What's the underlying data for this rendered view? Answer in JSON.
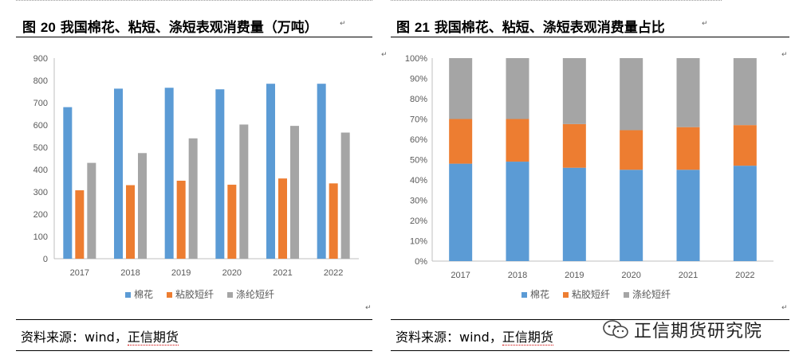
{
  "figures": [
    {
      "title_prefix": "图",
      "number": "20",
      "title_text": "我国棉花、粘短、涤短表观消费量（万吨）",
      "source": {
        "label": "资料来源：wind，",
        "org": "正信期货"
      }
    },
    {
      "title_prefix": "图",
      "number": "21",
      "title_text": "我国棉花、粘短、涤短表观消费量占比",
      "source": {
        "label": "资料来源：wind，",
        "org": "正信期货"
      }
    }
  ],
  "watermark": {
    "text": "正信期货研究院",
    "icon": "wechat-icon"
  },
  "colors": {
    "cotton": "#5B9BD5",
    "viscose": "#ED7D31",
    "polyester": "#A5A5A5"
  },
  "chart_data": [
    {
      "type": "bar",
      "categories": [
        "2017",
        "2018",
        "2019",
        "2020",
        "2021",
        "2022"
      ],
      "series": [
        {
          "name": "棉花",
          "values": [
            680,
            763,
            767,
            760,
            785,
            785
          ]
        },
        {
          "name": "粘胶短纤",
          "values": [
            307,
            330,
            350,
            332,
            360,
            338
          ]
        },
        {
          "name": "涤纶短纤",
          "values": [
            430,
            474,
            540,
            602,
            596,
            566
          ]
        }
      ],
      "ylim": [
        0,
        900
      ],
      "yticks": [
        0,
        100,
        200,
        300,
        400,
        500,
        600,
        700,
        800,
        900
      ],
      "legend_position": "bottom",
      "grid": false
    },
    {
      "type": "bar",
      "stacked": true,
      "categories": [
        "2017",
        "2018",
        "2019",
        "2020",
        "2021",
        "2022"
      ],
      "series": [
        {
          "name": "棉花",
          "values": [
            48,
            49,
            46,
            45,
            45,
            47
          ]
        },
        {
          "name": "粘胶短纤",
          "values": [
            22,
            21,
            21.5,
            19.5,
            21,
            20
          ]
        },
        {
          "name": "涤纶短纤",
          "values": [
            30,
            30,
            32.5,
            35.5,
            34,
            33
          ]
        }
      ],
      "ylim": [
        0,
        100
      ],
      "yticks": [
        "0%",
        "10%",
        "20%",
        "30%",
        "40%",
        "50%",
        "60%",
        "70%",
        "80%",
        "90%",
        "100%"
      ],
      "legend_position": "bottom",
      "grid": false
    }
  ]
}
